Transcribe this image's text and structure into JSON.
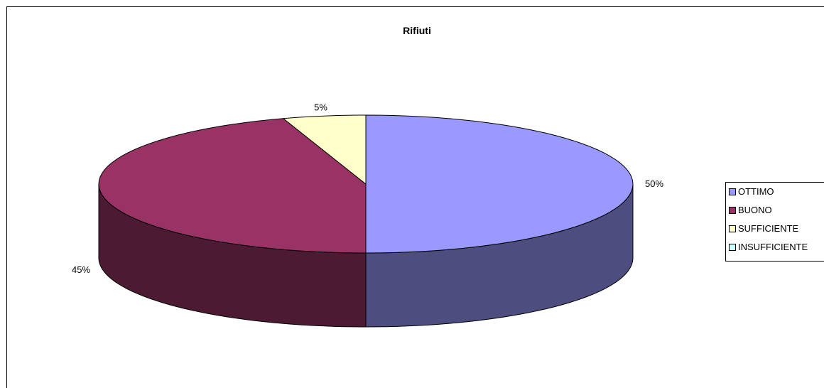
{
  "chart_data": {
    "type": "pie",
    "title": "Rifiuti",
    "three_d": true,
    "legend_position": "right",
    "slices": [
      {
        "name": "OTTIMO",
        "value": 50,
        "label": "50%",
        "color": "#9999FF"
      },
      {
        "name": "BUONO",
        "value": 45,
        "label": "45%",
        "color": "#993366"
      },
      {
        "name": "SUFFICIENTE",
        "value": 5,
        "label": "5%",
        "color": "#FFFFCC"
      },
      {
        "name": "INSUFFICIENTE",
        "value": 0,
        "label": "",
        "color": "#CCFFFF"
      }
    ]
  }
}
